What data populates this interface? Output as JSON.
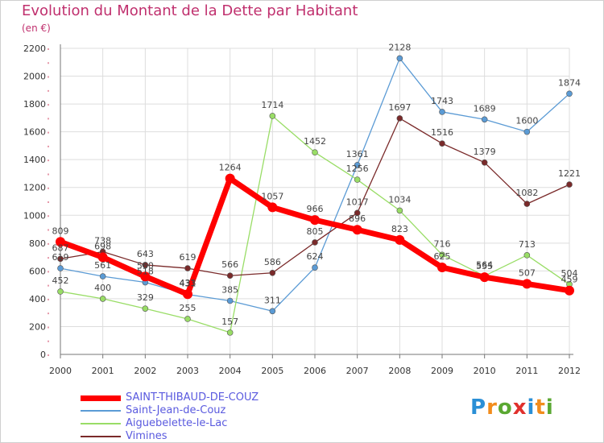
{
  "title": "Evolution du Montant de la Dette par Habitant",
  "subtitle": "(en €)",
  "logo_text": "Proxiti",
  "colors": {
    "title": "#c0306e",
    "legend_text": "#5a5adf",
    "axis": "#777777",
    "grid": "#dddddd"
  },
  "chart_data": {
    "type": "line",
    "categories": [
      "2000",
      "2001",
      "2002",
      "2003",
      "2004",
      "2005",
      "2006",
      "2007",
      "2008",
      "2009",
      "2010",
      "2011",
      "2012"
    ],
    "ylim": [
      0,
      2200
    ],
    "yticks": [
      0,
      200,
      400,
      600,
      800,
      1000,
      1200,
      1400,
      1600,
      1800,
      2000,
      2200
    ],
    "grid": true,
    "legend_position": "bottom-left",
    "series": [
      {
        "name": "SAINT-THIBAUD-DE-COUZ",
        "color": "#ff0000",
        "width": 7,
        "marker": 6,
        "values": [
          809,
          698,
          560,
          433,
          1264,
          1057,
          966,
          896,
          823,
          625,
          555,
          507,
          459
        ]
      },
      {
        "name": "Saint-Jean-de-Couz",
        "color": "#5b9bd5",
        "width": 1.3,
        "marker": 3.5,
        "values": [
          619,
          561,
          518,
          431,
          385,
          311,
          624,
          1361,
          2128,
          1743,
          1689,
          1600,
          1874
        ]
      },
      {
        "name": "Aiguebelette-le-Lac",
        "color": "#99dd66",
        "width": 1.3,
        "marker": 3.5,
        "values": [
          452,
          400,
          329,
          255,
          157,
          1714,
          1452,
          1256,
          1034,
          716,
          564,
          713,
          504
        ]
      },
      {
        "name": "Vimines",
        "color": "#7a2a2a",
        "width": 1.3,
        "marker": 3.5,
        "values": [
          687,
          738,
          643,
          619,
          566,
          586,
          805,
          1017,
          1697,
          1516,
          1379,
          1082,
          1221
        ]
      }
    ]
  }
}
